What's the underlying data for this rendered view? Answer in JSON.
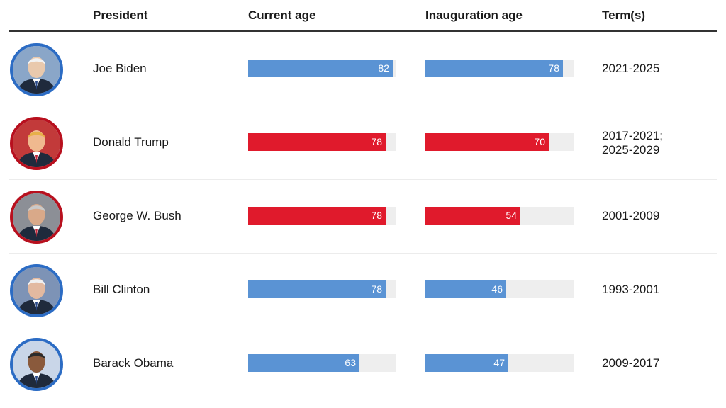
{
  "headers": {
    "president": "President",
    "current_age": "Current age",
    "inauguration_age": "Inauguration age",
    "terms": "Term(s)"
  },
  "colors": {
    "democrat": "#5a93d4",
    "republican": "#e01a2c",
    "democrat_ring": "#2c6cc4",
    "republican_ring": "#b8101e",
    "track": "#eeeeee"
  },
  "chart_data": {
    "type": "bar",
    "max_value": 84,
    "categories": [
      "Joe Biden",
      "Donald Trump",
      "George W. Bush",
      "Bill Clinton",
      "Barack Obama"
    ],
    "series": [
      {
        "name": "Current age",
        "values": [
          82,
          78,
          78,
          78,
          63
        ]
      },
      {
        "name": "Inauguration age",
        "values": [
          78,
          70,
          54,
          46,
          47
        ]
      }
    ]
  },
  "rows": [
    {
      "name": "Joe Biden",
      "party": "democrat",
      "current_age": 82,
      "inauguration_age": 78,
      "terms": "2021-2025",
      "avatar_icon": "biden-portrait-icon"
    },
    {
      "name": "Donald Trump",
      "party": "republican",
      "current_age": 78,
      "inauguration_age": 70,
      "terms": "2017-2021;\n2025-2029",
      "avatar_icon": "trump-portrait-icon"
    },
    {
      "name": "George W. Bush",
      "party": "republican",
      "current_age": 78,
      "inauguration_age": 54,
      "terms": "2001-2009",
      "avatar_icon": "bush-portrait-icon"
    },
    {
      "name": "Bill Clinton",
      "party": "democrat",
      "current_age": 78,
      "inauguration_age": 46,
      "terms": "1993-2001",
      "avatar_icon": "clinton-portrait-icon"
    },
    {
      "name": "Barack Obama",
      "party": "democrat",
      "current_age": 63,
      "inauguration_age": 47,
      "terms": "2009-2017",
      "avatar_icon": "obama-portrait-icon"
    }
  ]
}
